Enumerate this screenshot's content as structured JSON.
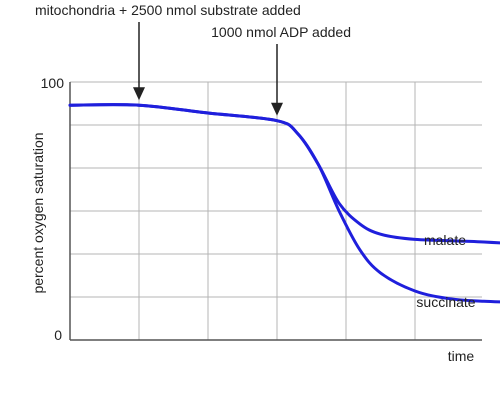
{
  "chart_data": {
    "type": "line",
    "xlabel": "time",
    "ylabel": "percent oxygen saturation",
    "ylim": [
      0,
      100
    ],
    "xlim": [
      0,
      10
    ],
    "y_tick_labels": [
      "100",
      "0"
    ],
    "grid": true,
    "series": [
      {
        "name": "malate",
        "x": [
          0,
          1.0,
          2.0,
          3.0,
          3.3,
          3.6,
          3.9,
          4.2,
          4.5,
          5.0,
          6.0,
          7.0,
          8.0,
          8.7
        ],
        "y": [
          91,
          91,
          88,
          85,
          80,
          68,
          53,
          45,
          41,
          39,
          38,
          36,
          33,
          31
        ]
      },
      {
        "name": "succinate",
        "x": [
          0,
          1.0,
          2.0,
          3.0,
          3.3,
          3.6,
          3.9,
          4.2,
          4.5,
          5.0,
          5.5,
          6.0,
          7.0,
          8.0,
          8.7
        ],
        "y": [
          91,
          91,
          88,
          85,
          80,
          68,
          50,
          35,
          26,
          19,
          16,
          15,
          14,
          12,
          10
        ]
      }
    ],
    "annotations": [
      {
        "text": "mitochondria + 2500 nmol substrate added",
        "x": 1.0
      },
      {
        "text": "1000 nmol ADP added",
        "x": 3.0
      }
    ],
    "colors": {
      "series": "#1f1fdc",
      "grid": "#b4b4b4",
      "axis": "#555555",
      "arrow": "#222222"
    }
  }
}
